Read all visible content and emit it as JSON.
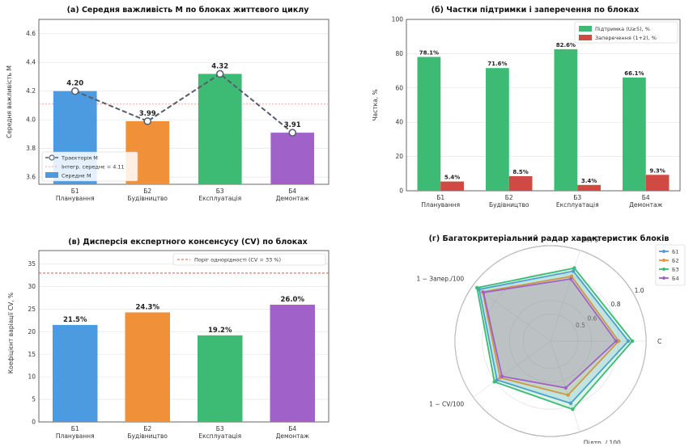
{
  "chart_data": [
    {
      "type": "bar",
      "title": "(а) Середня важливість M по блоках життєвого циклу",
      "xlabel": "",
      "ylabel": "Середня важливість M",
      "categories": [
        "Б1\nПланування",
        "Б2\nБудівництво",
        "Б3\nЕксплуатація",
        "Б4\nДемонтаж"
      ],
      "values": [
        4.2,
        3.99,
        4.32,
        3.91
      ],
      "value_labels": [
        "4.20",
        "3.99",
        "4.32",
        "3.91"
      ],
      "bar_colors": [
        "#4c9be0",
        "#f0913a",
        "#3dbb74",
        "#a062c8"
      ],
      "ylim": [
        3.55,
        4.7
      ],
      "yticks": [
        "3.6",
        "3.8",
        "4.0",
        "4.2",
        "4.4",
        "4.6"
      ],
      "ytick_values": [
        3.6,
        3.8,
        4.0,
        4.2,
        4.4,
        4.6
      ],
      "reference_line": 4.11,
      "legend": [
        "Траєкторія M",
        "Інтегр. середнє = 4.11",
        "Середнє M"
      ],
      "legend_position": "lower-left",
      "grid": true
    },
    {
      "type": "bar",
      "title": "(б) Частки підтримки і заперечення по блоках",
      "xlabel": "",
      "ylabel": "Частка, %",
      "categories": [
        "Б1\nПланування",
        "Б2\nБудівництво",
        "Б3\nЕксплуатація",
        "Б4\nДемонтаж"
      ],
      "series": [
        {
          "name": "Підтримка (U≥5), %",
          "values": [
            78.1,
            71.6,
            82.6,
            66.1
          ],
          "labels": [
            "78.1%",
            "71.6%",
            "82.6%",
            "66.1%"
          ],
          "color": "#3dbb74"
        },
        {
          "name": "Заперечення (1+2), %",
          "values": [
            5.4,
            8.5,
            3.4,
            9.3
          ],
          "labels": [
            "5.4%",
            "8.5%",
            "3.4%",
            "9.3%"
          ],
          "color": "#cf4a43"
        }
      ],
      "ylim": [
        0,
        100
      ],
      "yticks": [
        "0",
        "20",
        "40",
        "60",
        "80",
        "100"
      ],
      "ytick_values": [
        0,
        20,
        40,
        60,
        80,
        100
      ],
      "legend_position": "top-right",
      "grid": true
    },
    {
      "type": "bar",
      "title": "(в) Дисперсія експертного консенсусу (CV) по блоках",
      "xlabel": "",
      "ylabel": "Коефіцієнт варіації CV, %",
      "categories": [
        "Б1\nПланування",
        "Б2\nБудівництво",
        "Б3\nЕксплуатація",
        "Б4\nДемонтаж"
      ],
      "values": [
        21.5,
        24.3,
        19.2,
        26.0
      ],
      "value_labels": [
        "21.5%",
        "24.3%",
        "19.2%",
        "26.0%"
      ],
      "bar_colors": [
        "#4c9be0",
        "#f0913a",
        "#3dbb74",
        "#a062c8"
      ],
      "ylim": [
        0,
        38
      ],
      "yticks": [
        "0",
        "5",
        "10",
        "15",
        "20",
        "25",
        "30",
        "35"
      ],
      "ytick_values": [
        0,
        5,
        10,
        15,
        20,
        25,
        30,
        35
      ],
      "threshold": 33,
      "legend": [
        "Поріг однорідності (CV = 33 %)"
      ],
      "legend_position": "top-right",
      "grid": true
    },
    {
      "type": "radar",
      "title": "(г) Багатокритеріальний радар характеристик блоків",
      "axes": [
        "M / 5",
        "C",
        "Підтр. / 100",
        "1 − CV/100",
        "1 − Запер./100"
      ],
      "rticks": [
        "0.5",
        "0.6",
        "0.8",
        "1.0"
      ],
      "rtick_values": [
        0.5,
        0.6,
        0.8,
        1.0
      ],
      "rlim": [
        0.3,
        1.0
      ],
      "series": [
        {
          "name": "Б1",
          "values": [
            0.84,
            0.87,
            0.78,
            0.785,
            0.946
          ],
          "color": "#4c9be0"
        },
        {
          "name": "Б2",
          "values": [
            0.8,
            0.8,
            0.716,
            0.757,
            0.915
          ],
          "color": "#f0913a"
        },
        {
          "name": "Б3",
          "values": [
            0.864,
            0.9,
            0.826,
            0.808,
            0.966
          ],
          "color": "#3dbb74"
        },
        {
          "name": "Б4",
          "values": [
            0.78,
            0.78,
            0.661,
            0.74,
            0.907
          ],
          "color": "#a062c8"
        }
      ],
      "legend_position": "top-right",
      "grid": true
    }
  ]
}
